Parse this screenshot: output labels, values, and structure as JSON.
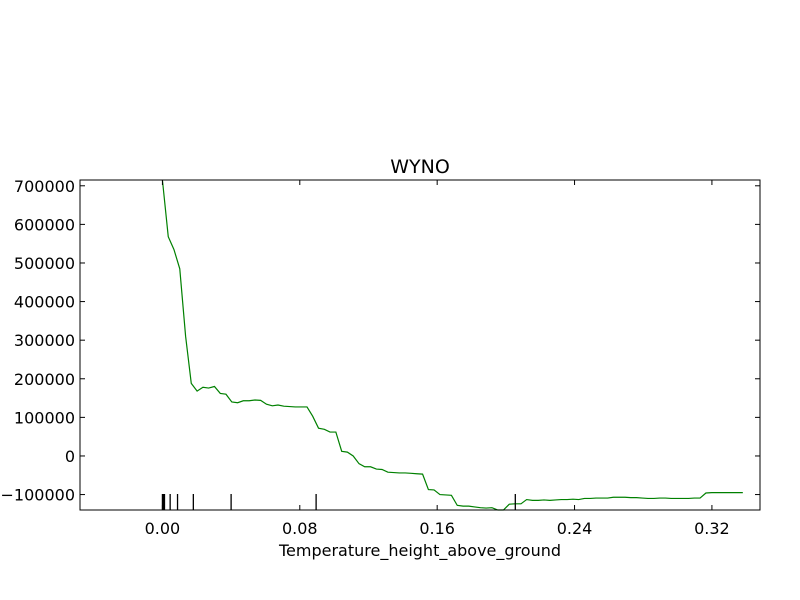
{
  "chart_data": {
    "type": "line",
    "title": "WYNO",
    "xlabel": "Temperature_height_above_ground",
    "ylabel": "",
    "xlim": [
      -0.048,
      0.348
    ],
    "ylim": [
      -140000,
      715000
    ],
    "x_ticks": [
      0.0,
      0.08,
      0.16,
      0.24,
      0.32
    ],
    "x_tick_labels": [
      "0.00",
      "0.08",
      "0.16",
      "0.24",
      "0.32"
    ],
    "y_ticks": [
      -100000,
      0,
      100000,
      200000,
      300000,
      400000,
      500000,
      600000,
      700000
    ],
    "y_tick_labels": [
      "−100000",
      "0",
      "100000",
      "200000",
      "300000",
      "400000",
      "500000",
      "600000",
      "700000"
    ],
    "grid": false,
    "series_color": "#008000",
    "series": [
      {
        "x": [
          0.0,
          0.0034,
          0.0067,
          0.0101,
          0.0135,
          0.0168,
          0.0202,
          0.0236,
          0.0269,
          0.0303,
          0.0337,
          0.037,
          0.0404,
          0.0438,
          0.0471,
          0.0505,
          0.0539,
          0.0572,
          0.0606,
          0.064,
          0.0673,
          0.0707,
          0.0741,
          0.0774,
          0.0808,
          0.0842,
          0.0875,
          0.0909,
          0.0943,
          0.0976,
          0.101,
          0.1044,
          0.1077,
          0.1111,
          0.1145,
          0.1178,
          0.1212,
          0.1246,
          0.1279,
          0.1313,
          0.1347,
          0.138,
          0.1414,
          0.1448,
          0.1481,
          0.1515,
          0.1549,
          0.1582,
          0.1616,
          0.165,
          0.1683,
          0.1717,
          0.1751,
          0.1784,
          0.1818,
          0.1852,
          0.1885,
          0.1919,
          0.1953,
          0.1986,
          0.202,
          0.2054,
          0.2088,
          0.2121,
          0.2155,
          0.2189,
          0.2222,
          0.2256,
          0.229,
          0.2323,
          0.2357,
          0.2391,
          0.2424,
          0.2458,
          0.2492,
          0.2525,
          0.2559,
          0.2593,
          0.2626,
          0.266,
          0.2694,
          0.2727,
          0.2761,
          0.2795,
          0.2828,
          0.2862,
          0.2896,
          0.2929,
          0.2963,
          0.2997,
          0.303,
          0.3064,
          0.3098,
          0.3131,
          0.3165,
          0.3199,
          0.3232,
          0.3266,
          0.33,
          0.3333,
          0.338
        ],
        "y": [
          715000,
          568000,
          535000,
          485000,
          310000,
          188000,
          168000,
          178000,
          176000,
          180000,
          162000,
          160000,
          140000,
          138000,
          143000,
          143000,
          145000,
          144000,
          134000,
          130000,
          132000,
          129000,
          128000,
          127000,
          127000,
          127000,
          103000,
          72000,
          69000,
          62000,
          62000,
          12000,
          10000,
          0,
          -20000,
          -28000,
          -28000,
          -34000,
          -35000,
          -42000,
          -43000,
          -44000,
          -44000,
          -45000,
          -46000,
          -47000,
          -87000,
          -88000,
          -100000,
          -101000,
          -102000,
          -128000,
          -130000,
          -130000,
          -132000,
          -134000,
          -135000,
          -134000,
          -140000,
          -140000,
          -125000,
          -124000,
          -124000,
          -113000,
          -115000,
          -115000,
          -114000,
          -115000,
          -114000,
          -113000,
          -113000,
          -112000,
          -113000,
          -110000,
          -110000,
          -109000,
          -109000,
          -109000,
          -107000,
          -107000,
          -107000,
          -108000,
          -108000,
          -109000,
          -110000,
          -110000,
          -109000,
          -109000,
          -110000,
          -110000,
          -110000,
          -110000,
          -109000,
          -109000,
          -96000,
          -95000,
          -95000,
          -95000,
          -95000,
          -95000,
          -95000
        ]
      }
    ],
    "rug_x": [
      0.0,
      0.0006,
      0.0012,
      0.0045,
      0.0088,
      0.018,
      0.04,
      0.0895,
      0.2055
    ]
  }
}
